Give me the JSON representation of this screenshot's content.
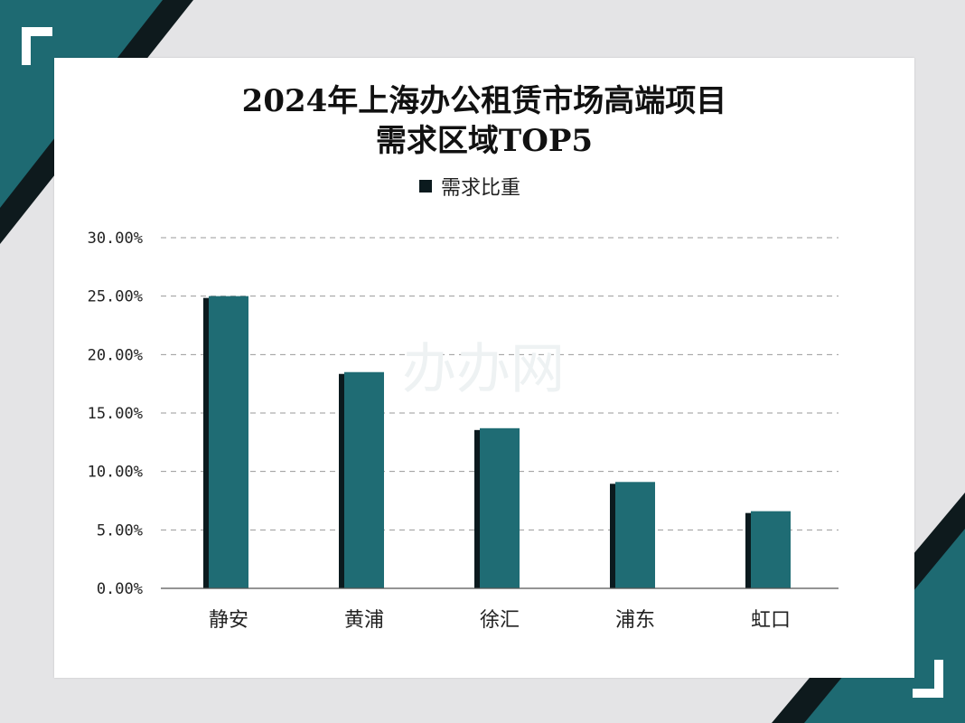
{
  "chart_data": {
    "type": "bar",
    "title": "2024年上海办公租赁市场高端项目\n需求区域TOP5",
    "legend": [
      "需求比重"
    ],
    "legend_position": "top-center",
    "categories": [
      "静安",
      "黄浦",
      "徐汇",
      "浦东",
      "虹口"
    ],
    "series": [
      {
        "name": "需求比重",
        "values": [
          25.0,
          18.5,
          13.7,
          9.1,
          6.6
        ]
      }
    ],
    "ylim": [
      0,
      30
    ],
    "yticks": [
      "0.00%",
      "5.00%",
      "10.00%",
      "15.00%",
      "20.00%",
      "25.00%",
      "30.00%"
    ],
    "grid": true,
    "colors": {
      "bar": "#1f6c74",
      "bar_shadow": "#0b1a1e",
      "accent": "#1e6a72",
      "dark": "#101a1d"
    }
  },
  "watermark": "办办网"
}
